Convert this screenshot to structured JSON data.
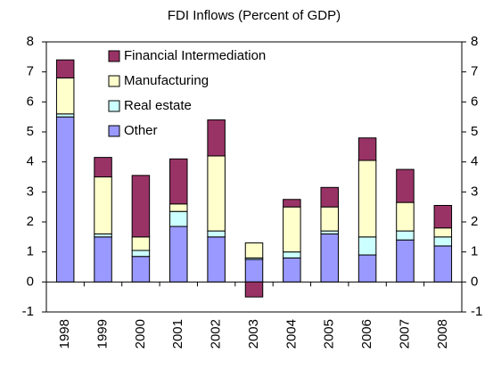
{
  "chart_data": {
    "type": "stacked_bar",
    "title": "FDI Inflows (Percent of GDP)",
    "categories": [
      "1998",
      "1999",
      "2000",
      "2001",
      "2002",
      "2003",
      "2004",
      "2005",
      "2006",
      "2007",
      "2008"
    ],
    "series": [
      {
        "name": "Other",
        "color": "#9999ff",
        "values": [
          5.5,
          1.5,
          0.85,
          1.85,
          1.5,
          0.75,
          0.8,
          1.6,
          0.9,
          1.4,
          1.2
        ]
      },
      {
        "name": "Real estate",
        "color": "#ccffff",
        "values": [
          0.1,
          0.1,
          0.2,
          0.5,
          0.2,
          0.05,
          0.2,
          0.1,
          0.6,
          0.3,
          0.3
        ]
      },
      {
        "name": "Manufacturing",
        "color": "#ffffcc",
        "values": [
          1.2,
          1.9,
          0.45,
          0.25,
          2.5,
          0.5,
          1.5,
          0.8,
          2.55,
          0.95,
          0.3
        ]
      },
      {
        "name": "Financial Intermediation",
        "color": "#993366",
        "values": [
          0.6,
          0.65,
          2.05,
          1.5,
          1.2,
          -0.5,
          0.25,
          0.65,
          0.75,
          1.1,
          0.75
        ]
      }
    ],
    "ylim": [
      -1,
      8
    ],
    "yticks": [
      -1,
      0,
      1,
      2,
      3,
      4,
      5,
      6,
      7,
      8
    ],
    "y2lim": [
      -1,
      8
    ],
    "y2ticks": [
      -1,
      0,
      1,
      2,
      3,
      4,
      5,
      6,
      7,
      8
    ],
    "legend": "upper-left"
  }
}
